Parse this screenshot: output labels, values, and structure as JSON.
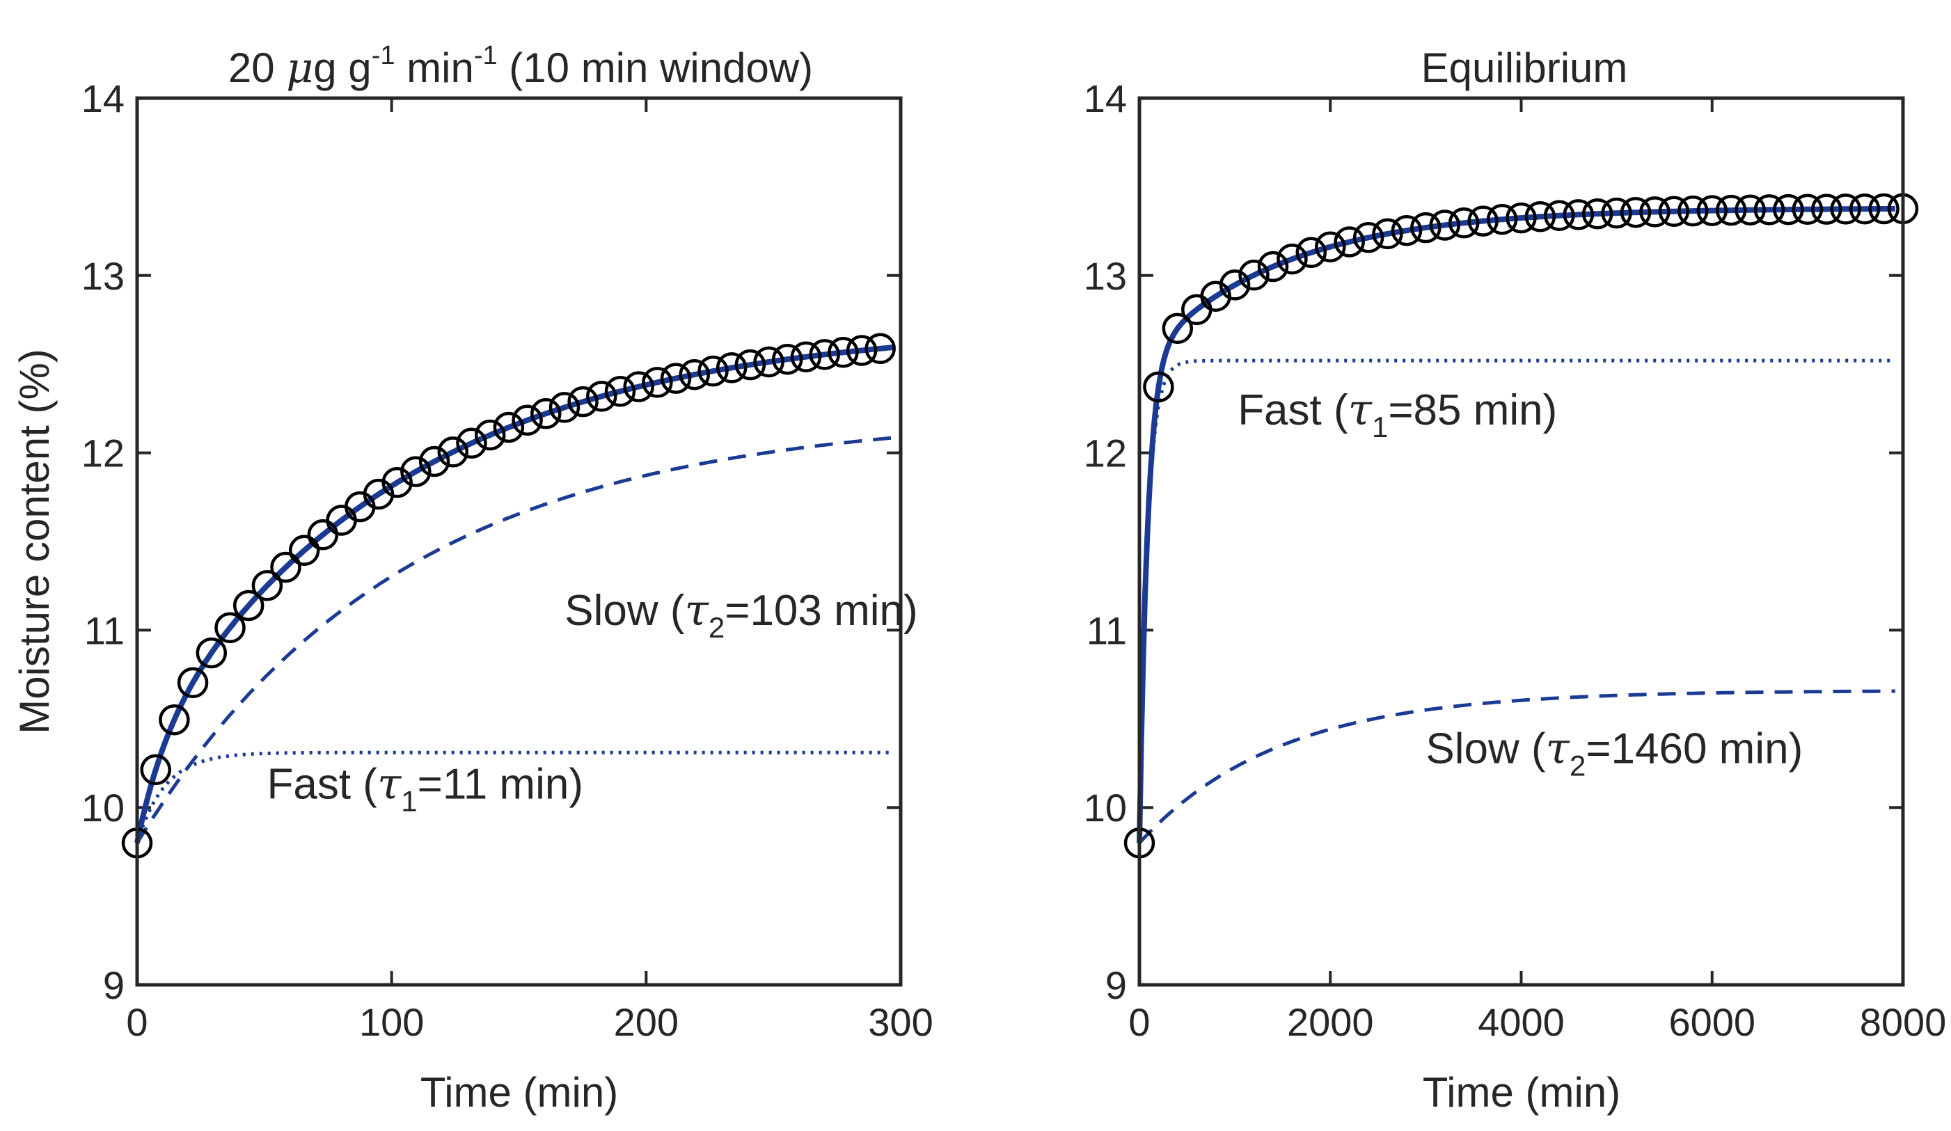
{
  "chart_data": [
    {
      "type": "scatter",
      "title": {
        "pre": "20 ",
        "mu": "μ",
        "g": "g g",
        "sup1": "-1",
        "min": " min",
        "sup2": "-1",
        "post": " (10 min window)"
      },
      "xlabel": "Time (min)",
      "ylabel": "Moisture content (%)",
      "xlim": [
        0,
        300
      ],
      "ylim": [
        9,
        14
      ],
      "xticks": [
        "0",
        "100",
        "200",
        "300"
      ],
      "yticks": [
        "9",
        "10",
        "11",
        "12",
        "13",
        "14"
      ],
      "grid": false,
      "colors": {
        "fit": "#1a3a94",
        "markers": "#000000",
        "axes": "#262626"
      },
      "model": {
        "y0": 9.8,
        "a_fast": 0.51,
        "tau_fast": 11,
        "a_slow": 2.42,
        "tau_slow": 103
      },
      "series": [
        {
          "role": "measured",
          "marker": "open-circle",
          "x_start": 0,
          "x_step": 7.3,
          "count": 41
        },
        {
          "role": "total-fit",
          "line": "solid"
        },
        {
          "role": "fast",
          "line": "dotted",
          "offset": 0
        },
        {
          "role": "slow",
          "line": "dashed",
          "offset": 0
        }
      ],
      "annotations": [
        {
          "key": "slow",
          "pre": "Slow (",
          "tau": "τ",
          "sub": "2",
          "post": "=103 min)",
          "x": 168,
          "y": 11.03
        },
        {
          "key": "fast",
          "pre": "Fast (",
          "tau": "τ",
          "sub": "1",
          "post": "=11 min)",
          "x": 51,
          "y": 10.05
        }
      ]
    },
    {
      "type": "scatter",
      "title": "Equilibrium",
      "xlabel": "Time (min)",
      "ylabel": "",
      "xlim": [
        0,
        8000
      ],
      "ylim": [
        9,
        14
      ],
      "xticks": [
        "0",
        "2000",
        "4000",
        "6000",
        "8000"
      ],
      "yticks": [
        "9",
        "10",
        "11",
        "12",
        "13",
        "14"
      ],
      "grid": false,
      "colors": {
        "fit": "#1a3a94",
        "markers": "#000000",
        "axes": "#262626"
      },
      "model": {
        "y0": 9.8,
        "a_fast": 2.72,
        "tau_fast": 85,
        "a_slow": 0.86,
        "tau_slow": 1460
      },
      "series": [
        {
          "role": "measured",
          "marker": "open-circle",
          "x_start": 0,
          "x_step": 200,
          "count": 41
        },
        {
          "role": "total-fit",
          "line": "solid"
        },
        {
          "role": "fast",
          "line": "dotted",
          "offset": 0
        },
        {
          "role": "slow",
          "line": "dashed",
          "offset": 0
        }
      ],
      "annotations": [
        {
          "key": "fast",
          "pre": "Fast (",
          "tau": "τ",
          "sub": "1",
          "post": "=85 min)",
          "x": 1030,
          "y": 12.16
        },
        {
          "key": "slow",
          "pre": "Slow (",
          "tau": "τ",
          "sub": "2",
          "post": "=1460 min)",
          "x": 3000,
          "y": 10.25
        }
      ]
    }
  ]
}
